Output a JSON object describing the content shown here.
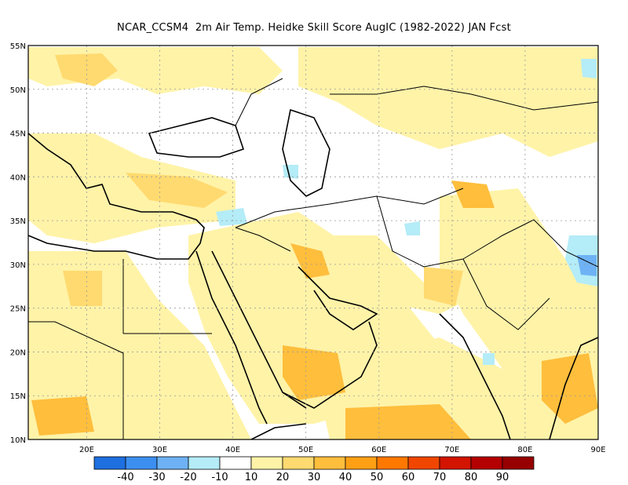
{
  "title": "NCAR_CCSM4  2m Air Temp. Heidke Skill Score AugIC (1982-2022) JAN Fcst",
  "map": {
    "region": "Middle East, North Africa and South Asia",
    "lon_range": [
      12,
      90
    ],
    "lat_range": [
      10,
      55
    ],
    "grid": true,
    "lat_ticks": [
      "10N",
      "15N",
      "20N",
      "25N",
      "30N",
      "35N",
      "40N",
      "45N",
      "50N",
      "55N"
    ],
    "lon_ticks": [
      "20E",
      "30E",
      "40E",
      "50E",
      "60E",
      "70E",
      "80E",
      "90E"
    ],
    "lat_values": [
      10,
      15,
      20,
      25,
      30,
      35,
      40,
      45,
      50,
      55
    ],
    "lon_values": [
      20,
      30,
      40,
      50,
      60,
      70,
      80,
      90
    ]
  },
  "colorbar": {
    "labels": [
      "-40",
      "-30",
      "-20",
      "-10",
      "10",
      "20",
      "30",
      "40",
      "50",
      "60",
      "70",
      "80",
      "90"
    ],
    "colors": [
      "#1e6fe0",
      "#3c8ff0",
      "#6eb2f5",
      "#b4ecf7",
      "#ffffff",
      "#fff3a8",
      "#ffda70",
      "#ffbe3c",
      "#ffa014",
      "#ff7800",
      "#f04600",
      "#d21400",
      "#b40000",
      "#960000"
    ]
  },
  "anomaly_features": [
    {
      "name": "Arabian Sea positive skill",
      "level": "40-50"
    },
    {
      "name": "Yemen positive skill",
      "level": "40-50"
    },
    {
      "name": "Tibet negative skill",
      "level": "-20 to -30"
    },
    {
      "name": "Bay of Bengal positive skill",
      "level": "30-40"
    }
  ]
}
